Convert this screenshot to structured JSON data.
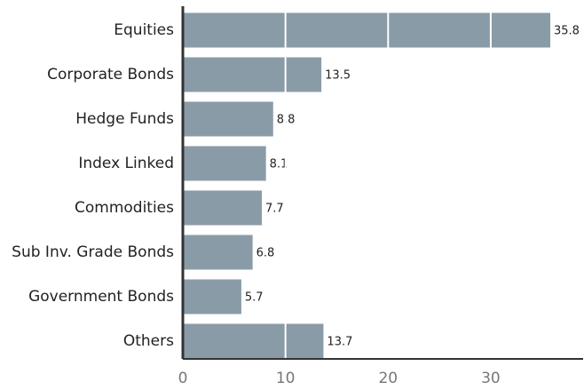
{
  "chart_data": {
    "type": "bar",
    "orientation": "horizontal",
    "categories": [
      "Equities",
      "Corporate Bonds",
      "Hedge Funds",
      "Index Linked",
      "Commodities",
      "Sub Inv. Grade Bonds",
      "Government Bonds",
      "Others"
    ],
    "values": [
      35.8,
      13.5,
      8.8,
      8.1,
      7.7,
      6.8,
      5.7,
      13.7
    ],
    "color": "#8a9ba8",
    "xlim": [
      0,
      39
    ],
    "xticks": [
      0,
      10,
      20,
      30
    ],
    "grid": true
  }
}
